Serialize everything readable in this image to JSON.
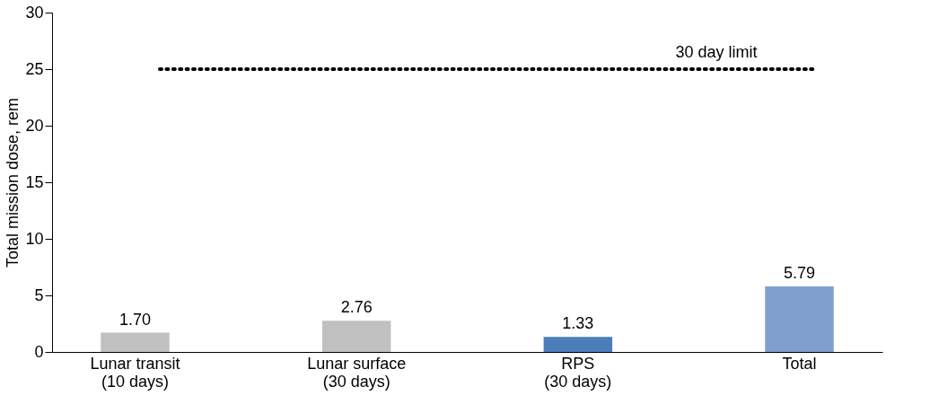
{
  "chart_data": {
    "type": "bar",
    "ylabel": "Total mission dose, rem",
    "categories": [
      "Lunar transit\n(10 days)",
      "Lunar surface\n(30 days)",
      "RPS\n(30 days)",
      "Total"
    ],
    "values": [
      1.7,
      2.76,
      1.33,
      5.79
    ],
    "colors": [
      "#c0c0c0",
      "#c0c0c0",
      "#4a7ebb",
      "#7f9fcf"
    ],
    "value_labels": [
      "1.70",
      "2.76",
      "1.33",
      "5.79"
    ],
    "ylim": [
      0,
      30
    ],
    "yticks": [
      0,
      5,
      10,
      15,
      20,
      25,
      30
    ],
    "grid": false,
    "ref_lines": [
      {
        "axis": "y",
        "value": 25,
        "label": "30 day limit",
        "line_style": "dotted",
        "color": "#000000"
      }
    ]
  }
}
